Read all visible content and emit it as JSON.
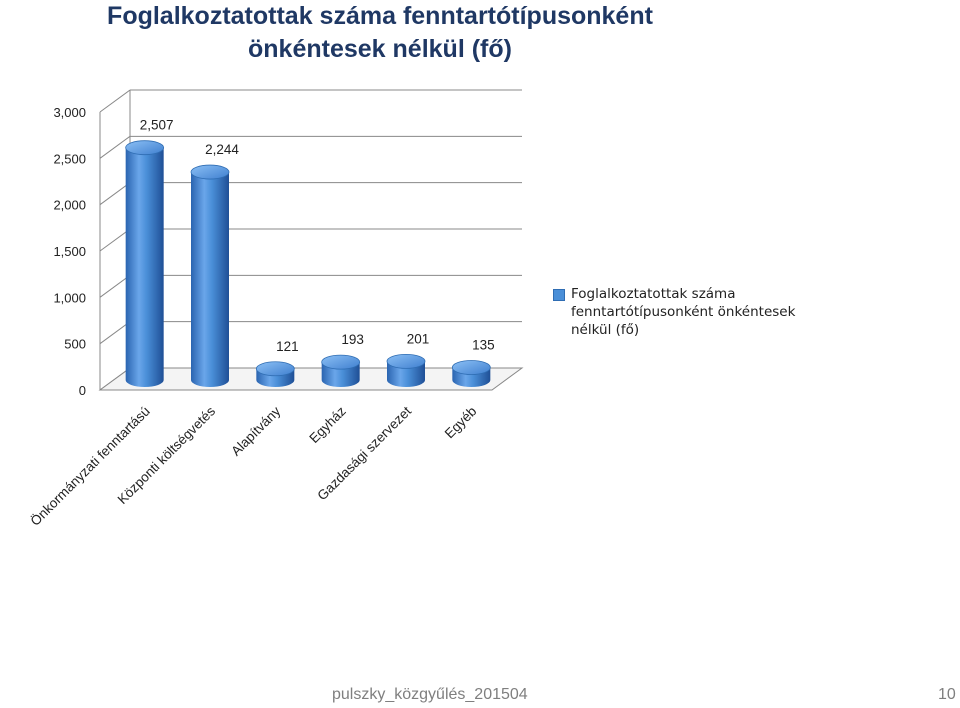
{
  "chart_data": {
    "type": "bar",
    "title_lines": [
      "Foglalkoztatottak száma fenntartótípusonként",
      "önkéntesek nélkül (fő)"
    ],
    "categories": [
      "Önkormányzati fenntartású",
      "Központi költségvetés",
      "Alapítvány",
      "Egyház",
      "Gazdasági szervezet",
      "Egyéb"
    ],
    "series": [
      {
        "name": "Foglalkoztatottak száma fenntartótípusonként önkéntesek nélkül (fő)",
        "values": [
          2507,
          2244,
          121,
          193,
          201,
          135
        ],
        "labels": [
          "2,507",
          "2,244",
          "121",
          "193",
          "201",
          "135"
        ]
      }
    ],
    "y_ticks": [
      "0",
      "500",
      "1,000",
      "1,500",
      "2,000",
      "2,500",
      "3,000"
    ],
    "ylim": [
      0,
      3000
    ],
    "grid": true,
    "style": "3d-cylinder",
    "legend_position": "right",
    "bar_color": "#4a8fd8"
  },
  "footer": {
    "text": "pulszky_közgyűlés_201504",
    "page": "10"
  }
}
